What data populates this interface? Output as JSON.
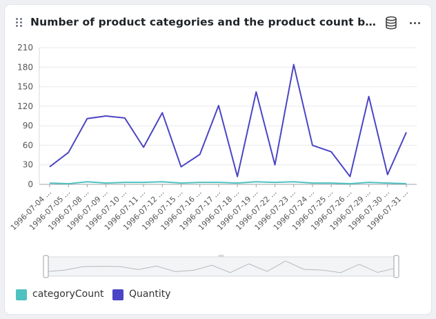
{
  "header": {
    "title": "Number of product categories and the product count by order ...",
    "icons": [
      "drag-handle-icon",
      "database-icon",
      "more-options-icon"
    ]
  },
  "chart_data": {
    "type": "line",
    "categories": [
      "1996-07-04 ...",
      "1996-07-05 ...",
      "1996-07-08 ...",
      "1996-07-09 ...",
      "1996-07-10 ...",
      "1996-07-11 ...",
      "1996-07-12 ...",
      "1996-07-15 ...",
      "1996-07-16 ...",
      "1996-07-17 ...",
      "1996-07-18 ...",
      "1996-07-19 ...",
      "1996-07-22 ...",
      "1996-07-23 ...",
      "1996-07-24 ...",
      "1996-07-25 ...",
      "1996-07-26 ...",
      "1996-07-29 ...",
      "1996-07-30 ...",
      "1996-07-31 ..."
    ],
    "series": [
      {
        "name": "categoryCount",
        "color": "#4fc1c0",
        "values": [
          2,
          1,
          4,
          2,
          3,
          3,
          4,
          2,
          3,
          3,
          2,
          4,
          3,
          4,
          2,
          2,
          1,
          3,
          2,
          1
        ]
      },
      {
        "name": "Quantity",
        "color": "#4b44c4",
        "values": [
          27,
          49,
          101,
          105,
          102,
          57,
          110,
          27,
          46,
          121,
          12,
          142,
          30,
          184,
          60,
          50,
          12,
          135,
          15,
          80
        ]
      }
    ],
    "yticks": [
      "0",
      "30",
      "60",
      "90",
      "120",
      "150",
      "180",
      "210"
    ],
    "ylim": [
      0,
      210
    ],
    "grid": true,
    "legend": "bottom-left",
    "brush": {
      "start": 0,
      "end": 1
    }
  }
}
